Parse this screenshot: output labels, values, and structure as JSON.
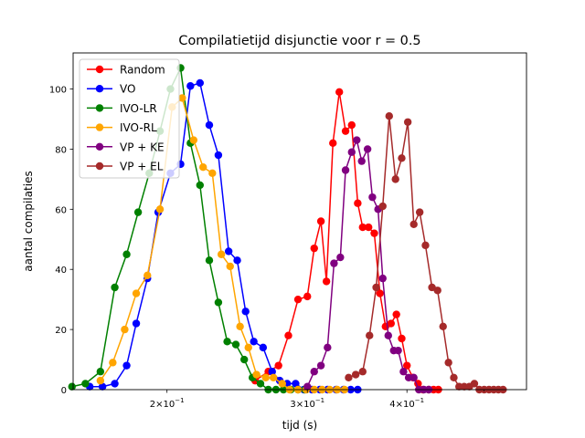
{
  "chart_data": {
    "type": "line",
    "title": "Compilatietijd disjunctie voor r = 0.5",
    "xlabel": "tijd (s)",
    "ylabel": "aantal compilaties",
    "xscale": "log",
    "xlim": [
      0.1525,
      0.565
    ],
    "ylim": [
      0,
      112
    ],
    "y_ticks": [
      0,
      20,
      40,
      60,
      80,
      100
    ],
    "x_ticks": [
      {
        "value": 0.2,
        "base": "2×10",
        "exp": "−1"
      },
      {
        "value": 0.3,
        "base": "3×10",
        "exp": "−1"
      },
      {
        "value": 0.4,
        "base": "4×10",
        "exp": "−1"
      }
    ],
    "legend_position": "top-left",
    "series": [
      {
        "name": "Random",
        "color": "#ff0000",
        "x": [
          0.258,
          0.268,
          0.276,
          0.284,
          0.292,
          0.3,
          0.306,
          0.312,
          0.317,
          0.323,
          0.329,
          0.335,
          0.341,
          0.347,
          0.352,
          0.358,
          0.364,
          0.37,
          0.376,
          0.382,
          0.388,
          0.394,
          0.4,
          0.407,
          0.413,
          0.419,
          0.426,
          0.432,
          0.438
        ],
        "y": [
          3,
          6,
          8,
          18,
          30,
          31,
          47,
          56,
          36,
          82,
          99,
          86,
          88,
          62,
          54,
          54,
          52,
          32,
          21,
          22,
          25,
          17,
          8,
          4,
          2,
          0,
          0,
          0,
          0
        ]
      },
      {
        "name": "VO",
        "color": "#0000ff",
        "x": [
          0.16,
          0.166,
          0.172,
          0.178,
          0.183,
          0.189,
          0.195,
          0.202,
          0.208,
          0.214,
          0.22,
          0.226,
          0.232,
          0.239,
          0.245,
          0.251,
          0.257,
          0.264,
          0.271,
          0.277,
          0.283,
          0.29,
          0.297,
          0.304,
          0.311,
          0.318,
          0.326,
          0.333,
          0.34,
          0.347
        ],
        "y": [
          1,
          1,
          2,
          8,
          22,
          37,
          59,
          72,
          75,
          101,
          102,
          88,
          78,
          46,
          43,
          26,
          16,
          14,
          6,
          3,
          2,
          2,
          0,
          0,
          0,
          0,
          0,
          0,
          0,
          0
        ]
      },
      {
        "name": "IVO-LR",
        "color": "#008000",
        "x": [
          0.152,
          0.158,
          0.165,
          0.172,
          0.178,
          0.184,
          0.19,
          0.196,
          0.202,
          0.208,
          0.214,
          0.22,
          0.226,
          0.232,
          0.238,
          0.244,
          0.25,
          0.256,
          0.262,
          0.268,
          0.274,
          0.28,
          0.286,
          0.292,
          0.298
        ],
        "y": [
          1,
          2,
          6,
          34,
          45,
          59,
          72,
          86,
          100,
          107,
          82,
          68,
          43,
          29,
          16,
          15,
          10,
          4,
          2,
          0,
          0,
          0,
          0,
          0,
          0
        ]
      },
      {
        "name": "IVO-RL",
        "color": "#ffa500",
        "x": [
          0.165,
          0.171,
          0.177,
          0.183,
          0.189,
          0.196,
          0.203,
          0.209,
          0.216,
          0.222,
          0.228,
          0.234,
          0.24,
          0.247,
          0.253,
          0.259,
          0.266,
          0.272,
          0.279,
          0.285,
          0.292,
          0.299,
          0.306,
          0.313,
          0.32,
          0.327,
          0.334
        ],
        "y": [
          3,
          9,
          20,
          32,
          38,
          60,
          94,
          97,
          83,
          74,
          72,
          45,
          41,
          21,
          14,
          5,
          4,
          4,
          2,
          0,
          0,
          0,
          0,
          0,
          0,
          0,
          0
        ]
      },
      {
        "name": "VP + KE",
        "color": "#800080",
        "x": [
          0.3,
          0.306,
          0.312,
          0.318,
          0.324,
          0.33,
          0.335,
          0.341,
          0.346,
          0.351,
          0.357,
          0.362,
          0.368,
          0.373,
          0.379,
          0.385,
          0.39,
          0.396,
          0.402,
          0.408,
          0.414,
          0.42,
          0.426
        ],
        "y": [
          1,
          6,
          8,
          14,
          42,
          44,
          73,
          79,
          83,
          76,
          80,
          64,
          60,
          37,
          18,
          13,
          13,
          6,
          4,
          4,
          0,
          0,
          0
        ]
      },
      {
        "name": "VP + EL",
        "color": "#a52a2a",
        "x": [
          0.338,
          0.345,
          0.352,
          0.359,
          0.366,
          0.373,
          0.38,
          0.387,
          0.394,
          0.401,
          0.408,
          0.415,
          0.422,
          0.43,
          0.437,
          0.444,
          0.451,
          0.458,
          0.465,
          0.472,
          0.479,
          0.486,
          0.493,
          0.5,
          0.507,
          0.514,
          0.521,
          0.528
        ],
        "y": [
          4,
          5,
          6,
          18,
          34,
          61,
          91,
          70,
          77,
          89,
          55,
          59,
          48,
          34,
          33,
          21,
          9,
          4,
          1,
          1,
          1,
          2,
          0,
          0,
          0,
          0,
          0,
          0
        ]
      }
    ]
  }
}
